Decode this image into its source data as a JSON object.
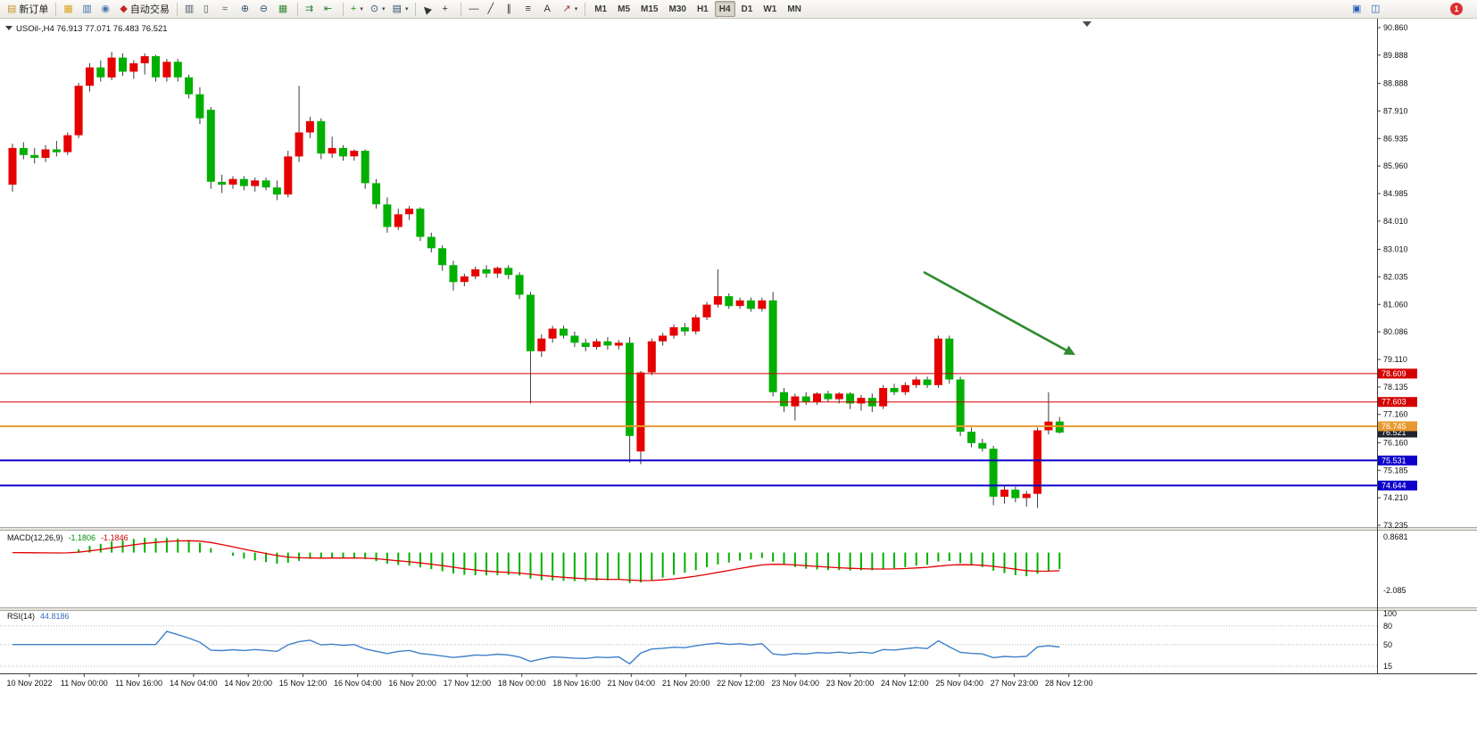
{
  "toolbar": {
    "groups": [
      {
        "name": "orders",
        "buttons": [
          {
            "name": "new-order",
            "label": "新订单"
          }
        ]
      },
      {
        "name": "panels",
        "buttons": [
          {
            "name": "profiles"
          },
          {
            "name": "market-watch"
          },
          {
            "name": "navigator"
          },
          {
            "name": "auto-trading",
            "label": "自动交易"
          }
        ]
      },
      {
        "name": "chart-view",
        "buttons": [
          {
            "name": "bar-chart"
          },
          {
            "name": "candlestick-chart"
          },
          {
            "name": "line-chart"
          },
          {
            "name": "zoom-in"
          },
          {
            "name": "zoom-out"
          },
          {
            "name": "tile-windows"
          }
        ]
      },
      {
        "name": "chart-nav",
        "buttons": [
          {
            "name": "auto-scroll"
          },
          {
            "name": "chart-shift"
          }
        ]
      },
      {
        "name": "insert",
        "buttons": [
          {
            "name": "indicators",
            "caret": true
          },
          {
            "name": "periods",
            "caret": true
          },
          {
            "name": "templates",
            "caret": true
          }
        ]
      },
      {
        "name": "cursor-tools",
        "buttons": [
          {
            "name": "cursor"
          },
          {
            "name": "crosshair"
          }
        ]
      },
      {
        "name": "draw-tools",
        "buttons": [
          {
            "name": "horizontal-line"
          },
          {
            "name": "trendline"
          },
          {
            "name": "equidistant-channel"
          },
          {
            "name": "fibonacci"
          },
          {
            "name": "text-label"
          },
          {
            "name": "arrows",
            "caret": true
          }
        ]
      },
      {
        "name": "timeframes",
        "buttons": [
          {
            "name": "tf-m1",
            "label": "M1"
          },
          {
            "name": "tf-m5",
            "label": "M5"
          },
          {
            "name": "tf-m15",
            "label": "M15"
          },
          {
            "name": "tf-m30",
            "label": "M30"
          },
          {
            "name": "tf-h1",
            "label": "H1"
          },
          {
            "name": "tf-h4",
            "label": "H4",
            "active": true
          },
          {
            "name": "tf-d1",
            "label": "D1"
          },
          {
            "name": "tf-w1",
            "label": "W1"
          },
          {
            "name": "tf-mn",
            "label": "MN"
          }
        ]
      }
    ],
    "active_timeframe": "H4",
    "right": {
      "icons": [
        {
          "name": "community"
        },
        {
          "name": "chat"
        }
      ],
      "notification_badge": "1"
    }
  },
  "chart": {
    "title": "USOil-,H4 76.913 77.071 76.483 76.521",
    "symbol": "USOil-",
    "period": "H4",
    "ohlc": {
      "open": "76.913",
      "high": "77.071",
      "low": "76.483",
      "close": "76.521"
    },
    "price_axis_labels": [
      "90.860",
      "89.888",
      "88.888",
      "87.910",
      "86.935",
      "85.960",
      "84.985",
      "84.010",
      "83.010",
      "82.035",
      "81.060",
      "80.086",
      "79.110",
      "78.135",
      "77.160",
      "76.160",
      "75.185",
      "74.210",
      "73.235"
    ],
    "price_tags": [
      {
        "label": "78.609",
        "color": "#d40000",
        "type": "resistance"
      },
      {
        "label": "77.603",
        "color": "#d40000",
        "type": "resistance"
      },
      {
        "label": "75.531",
        "color": "#0d00cc",
        "type": "support"
      },
      {
        "label": "74.644",
        "color": "#0d00cc",
        "type": "support"
      },
      {
        "label": "76.521",
        "color": "#20242e",
        "type": "current-price"
      },
      {
        "label": "76.745",
        "color": "#e89a30",
        "type": "pivot"
      }
    ],
    "time_axis_labels": [
      "10 Nov 2022",
      "11 Nov 00:00",
      "11 Nov 16:00",
      "14 Nov 04:00",
      "14 Nov 20:00",
      "15 Nov 12:00",
      "16 Nov 04:00",
      "16 Nov 20:00",
      "17 Nov 12:00",
      "18 Nov 00:00",
      "18 Nov 16:00",
      "21 Nov 04:00",
      "21 Nov 20:00",
      "22 Nov 12:00",
      "23 Nov 04:00",
      "23 Nov 20:00",
      "24 Nov 12:00",
      "25 Nov 04:00",
      "27 Nov 23:00",
      "28 Nov 12:00"
    ]
  },
  "indicators": {
    "macd": {
      "label": "MACD(12,26,9)",
      "values": [
        "-1.1806",
        "-1.1846"
      ],
      "axis_labels": [
        "0.8681",
        "-2.085"
      ]
    },
    "rsi": {
      "label": "RSI(14)",
      "value": "44.8186",
      "axis_labels": [
        "100",
        "80",
        "50",
        "15"
      ]
    }
  },
  "chart_data": {
    "type": "candlestick",
    "symbol": "USOil-",
    "timeframe": "H4",
    "up_color": "#e60000",
    "down_color": "#00b000",
    "y_range": [
      73.235,
      90.86
    ],
    "current_price": 76.521,
    "levels": [
      {
        "value": 78.609,
        "color": "#d40000",
        "width": 1
      },
      {
        "value": 77.603,
        "color": "#d40000",
        "width": 1
      },
      {
        "value": 76.745,
        "color": "#e89a30",
        "width": 2
      },
      {
        "value": 75.531,
        "color": "#0d00cc",
        "width": 2
      },
      {
        "value": 74.644,
        "color": "#0d00cc",
        "width": 2
      }
    ],
    "annotation_arrow": {
      "color": "#2e8b2e",
      "direction": "down-right"
    },
    "macd": {
      "fast": 12,
      "slow": 26,
      "signal": 9,
      "histogram_color": "#00b000",
      "signal_color": "#e10000",
      "y_max": 0.8681,
      "y_min": -2.085
    },
    "rsi": {
      "period": 14,
      "color": "#4080c8",
      "levels": [
        80,
        50,
        15
      ]
    },
    "candles": [
      [
        85.3,
        86.75,
        85.05,
        86.6
      ],
      [
        86.6,
        86.8,
        86.2,
        86.35
      ],
      [
        86.35,
        86.6,
        86.05,
        86.25
      ],
      [
        86.25,
        86.7,
        86.1,
        86.55
      ],
      [
        86.55,
        86.85,
        86.3,
        86.45
      ],
      [
        86.45,
        87.15,
        86.35,
        87.05
      ],
      [
        87.05,
        88.9,
        86.95,
        88.8
      ],
      [
        88.8,
        89.6,
        88.6,
        89.45
      ],
      [
        89.45,
        89.7,
        88.95,
        89.1
      ],
      [
        89.1,
        90.0,
        89.0,
        89.8
      ],
      [
        89.8,
        89.95,
        89.15,
        89.3
      ],
      [
        89.3,
        89.7,
        89.05,
        89.6
      ],
      [
        89.6,
        89.95,
        89.2,
        89.85
      ],
      [
        89.85,
        89.9,
        88.95,
        89.1
      ],
      [
        89.1,
        89.75,
        88.95,
        89.65
      ],
      [
        89.65,
        89.75,
        88.95,
        89.1
      ],
      [
        89.1,
        89.2,
        88.35,
        88.5
      ],
      [
        88.5,
        88.75,
        87.45,
        87.65
      ],
      [
        87.95,
        88.05,
        85.15,
        85.4
      ],
      [
        85.4,
        85.65,
        85.0,
        85.3
      ],
      [
        85.3,
        85.6,
        85.15,
        85.5
      ],
      [
        85.5,
        85.6,
        85.1,
        85.25
      ],
      [
        85.25,
        85.55,
        85.05,
        85.45
      ],
      [
        85.45,
        85.55,
        85.1,
        85.2
      ],
      [
        85.2,
        85.45,
        84.75,
        84.95
      ],
      [
        84.95,
        86.5,
        84.85,
        86.3
      ],
      [
        86.3,
        88.8,
        86.1,
        87.15
      ],
      [
        87.15,
        87.7,
        86.95,
        87.55
      ],
      [
        87.55,
        87.65,
        86.2,
        86.4
      ],
      [
        86.4,
        87.0,
        86.25,
        86.6
      ],
      [
        86.6,
        86.7,
        86.15,
        86.3
      ],
      [
        86.3,
        86.55,
        86.15,
        86.5
      ],
      [
        86.5,
        86.55,
        85.15,
        85.35
      ],
      [
        85.35,
        85.5,
        84.45,
        84.6
      ],
      [
        84.6,
        84.85,
        83.6,
        83.8
      ],
      [
        83.8,
        84.45,
        83.7,
        84.25
      ],
      [
        84.25,
        84.55,
        84.05,
        84.45
      ],
      [
        84.45,
        84.5,
        83.3,
        83.45
      ],
      [
        83.45,
        83.6,
        82.9,
        83.05
      ],
      [
        83.05,
        83.15,
        82.25,
        82.45
      ],
      [
        82.45,
        82.6,
        81.55,
        81.85
      ],
      [
        81.85,
        82.15,
        81.7,
        82.05
      ],
      [
        82.05,
        82.4,
        81.95,
        82.3
      ],
      [
        82.3,
        82.45,
        82.0,
        82.15
      ],
      [
        82.15,
        82.4,
        82.0,
        82.35
      ],
      [
        82.35,
        82.45,
        81.95,
        82.1
      ],
      [
        82.1,
        82.2,
        81.25,
        81.4
      ],
      [
        81.4,
        81.5,
        77.55,
        79.4
      ],
      [
        79.4,
        80.0,
        79.2,
        79.85
      ],
      [
        79.85,
        80.3,
        79.7,
        80.2
      ],
      [
        80.2,
        80.3,
        79.85,
        79.95
      ],
      [
        79.95,
        80.1,
        79.55,
        79.7
      ],
      [
        79.7,
        79.85,
        79.4,
        79.55
      ],
      [
        79.55,
        79.85,
        79.45,
        79.75
      ],
      [
        79.75,
        79.9,
        79.45,
        79.6
      ],
      [
        79.6,
        79.8,
        79.45,
        79.7
      ],
      [
        79.7,
        79.9,
        75.45,
        76.4
      ],
      [
        75.85,
        78.7,
        75.4,
        78.65
      ],
      [
        78.65,
        79.85,
        78.55,
        79.75
      ],
      [
        79.75,
        80.05,
        79.6,
        79.95
      ],
      [
        79.95,
        80.35,
        79.85,
        80.25
      ],
      [
        80.25,
        80.4,
        79.95,
        80.1
      ],
      [
        80.1,
        80.7,
        80.0,
        80.6
      ],
      [
        80.6,
        81.15,
        80.5,
        81.05
      ],
      [
        81.05,
        82.3,
        80.95,
        81.35
      ],
      [
        81.35,
        81.45,
        80.9,
        81.0
      ],
      [
        81.0,
        81.3,
        80.9,
        81.2
      ],
      [
        81.2,
        81.3,
        80.8,
        80.9
      ],
      [
        80.9,
        81.3,
        80.8,
        81.2
      ],
      [
        81.2,
        81.5,
        77.8,
        77.95
      ],
      [
        77.95,
        78.1,
        77.25,
        77.45
      ],
      [
        77.45,
        77.9,
        76.95,
        77.8
      ],
      [
        77.8,
        77.95,
        77.5,
        77.6
      ],
      [
        77.6,
        77.95,
        77.5,
        77.9
      ],
      [
        77.9,
        78.0,
        77.6,
        77.7
      ],
      [
        77.7,
        77.95,
        77.55,
        77.9
      ],
      [
        77.9,
        77.95,
        77.35,
        77.55
      ],
      [
        77.55,
        77.85,
        77.3,
        77.75
      ],
      [
        77.75,
        77.9,
        77.25,
        77.45
      ],
      [
        77.45,
        78.2,
        77.35,
        78.1
      ],
      [
        78.1,
        78.25,
        77.85,
        77.95
      ],
      [
        77.95,
        78.3,
        77.85,
        78.2
      ],
      [
        78.2,
        78.5,
        78.1,
        78.4
      ],
      [
        78.4,
        78.5,
        78.1,
        78.2
      ],
      [
        78.2,
        79.95,
        78.1,
        79.85
      ],
      [
        79.85,
        79.95,
        78.25,
        78.4
      ],
      [
        78.4,
        78.5,
        76.4,
        76.55
      ],
      [
        76.55,
        76.7,
        76.0,
        76.15
      ],
      [
        76.15,
        76.3,
        75.85,
        75.95
      ],
      [
        75.95,
        76.05,
        73.95,
        74.25
      ],
      [
        74.25,
        74.65,
        74.0,
        74.5
      ],
      [
        74.5,
        74.6,
        74.05,
        74.2
      ],
      [
        74.2,
        74.45,
        73.9,
        74.35
      ],
      [
        74.35,
        76.7,
        73.85,
        76.6
      ],
      [
        76.6,
        77.95,
        76.45,
        76.91
      ],
      [
        76.913,
        77.071,
        76.483,
        76.521
      ]
    ]
  }
}
